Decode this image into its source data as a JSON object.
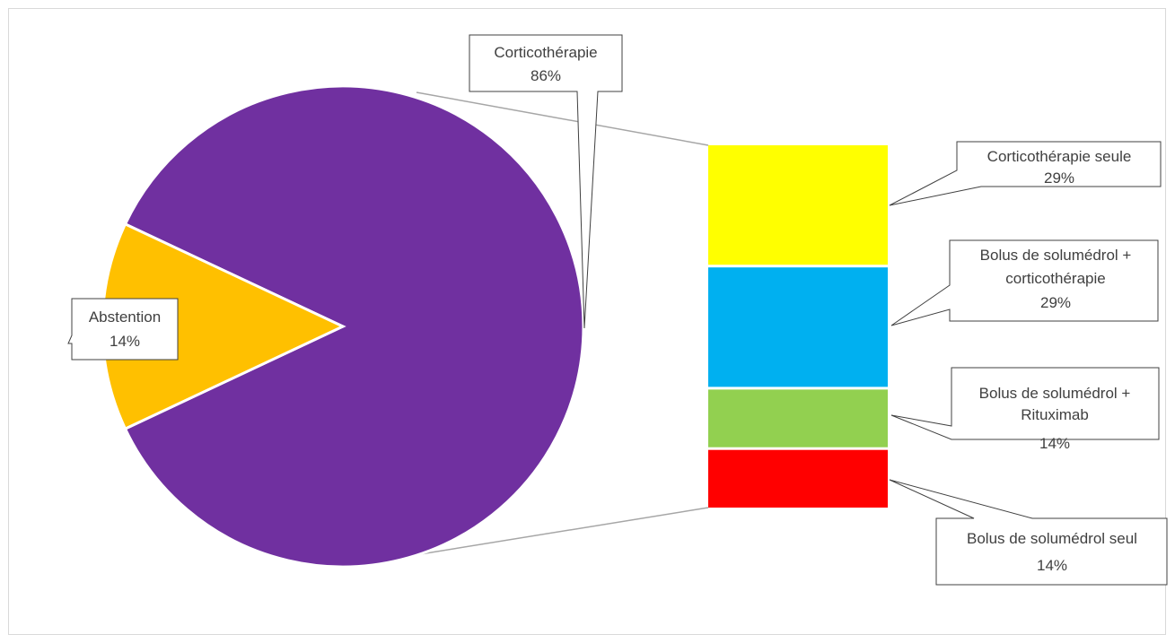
{
  "chart_data": {
    "type": "pie",
    "subtype": "bar-of-pie",
    "title": "",
    "main_pie": [
      {
        "label": "Corticothérapie",
        "percent_label": "86%",
        "value": 86,
        "color": "#7030A0"
      },
      {
        "label": "Abstention",
        "percent_label": "14%",
        "value": 14,
        "color": "#FFC000"
      }
    ],
    "breakdown_of": "Corticothérapie",
    "breakdown_bar": [
      {
        "label": "Corticothérapie seule",
        "percent_label": "29%",
        "value": 29,
        "color": "#FFFF00"
      },
      {
        "label": "Bolus de solumédrol + corticothérapie",
        "percent_label": "29%",
        "value": 29,
        "color": "#00B0F0"
      },
      {
        "label": "Bolus de solumédrol + Rituximab",
        "percent_label": "14%",
        "value": 14,
        "color": "#92D050"
      },
      {
        "label": "Bolus de solumédrol seul",
        "percent_label": "14%",
        "value": 14,
        "color": "#FF0000"
      }
    ],
    "legend": "none"
  }
}
